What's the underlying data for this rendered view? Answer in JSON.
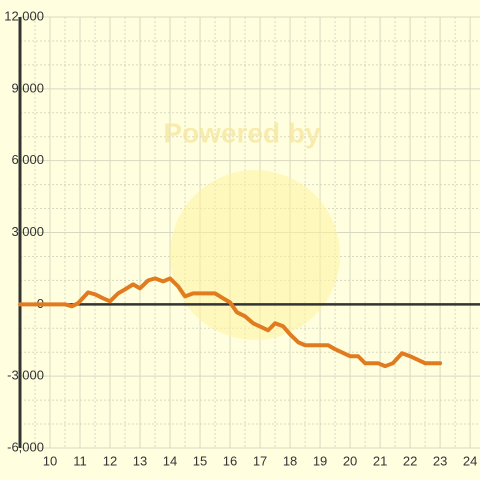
{
  "chart_data": {
    "type": "line",
    "watermark": "Powered by",
    "xlim": [
      9,
      24.33
    ],
    "ylim": [
      -6000,
      12000
    ],
    "xticks": [
      10,
      11,
      12,
      13,
      14,
      15,
      16,
      17,
      18,
      19,
      20,
      21,
      22,
      23,
      24
    ],
    "xminorticks": [
      9.5,
      10.5,
      11.5,
      12.5,
      13.5,
      14.5,
      15.5,
      16.5,
      17.5,
      18.5,
      19.5,
      20.5,
      21.5,
      22.5,
      23.5
    ],
    "yticks": [
      {
        "value": -6000,
        "label": "-6,000"
      },
      {
        "value": -3000,
        "label": "-3,000"
      },
      0,
      {
        "value": 3000,
        "label": "3,000"
      },
      {
        "value": 6000,
        "label": "6,000"
      },
      {
        "value": 9000,
        "label": "9,000"
      },
      {
        "value": 12000,
        "label": "12,000"
      }
    ],
    "yminorticks": [
      -5000,
      -4000,
      -2000,
      -1000,
      1000,
      2000,
      4000,
      5000,
      7000,
      8000,
      10000,
      11000
    ],
    "grid": true,
    "series": [
      {
        "color": "#e07b20",
        "x": [
          9,
          10.5,
          10.73,
          10.93,
          11.27,
          11.5,
          11.77,
          12,
          12.27,
          12.5,
          12.77,
          13,
          13.27,
          13.5,
          13.77,
          14,
          14.27,
          14.5,
          14.77,
          15.5,
          15.77,
          16,
          16.23,
          16.5,
          16.77,
          17.27,
          17.5,
          17.77,
          18,
          18.27,
          18.5,
          19.27,
          19.5,
          20,
          20.27,
          20.5,
          20.93,
          21.17,
          21.43,
          21.73,
          22,
          22.5,
          23
        ],
        "values": [
          0,
          0,
          -83,
          42,
          500,
          417,
          250,
          125,
          458,
          625,
          833,
          667,
          1000,
          1083,
          958,
          1083,
          750,
          333,
          458,
          458,
          250,
          83,
          -333,
          -500,
          -792,
          -1083,
          -792,
          -917,
          -1250,
          -1583,
          -1708,
          -1708,
          -1875,
          -2167,
          -2167,
          -2458,
          -2458,
          -2583,
          -2458,
          -2042,
          -2167,
          -2458,
          -2458
        ]
      }
    ]
  }
}
